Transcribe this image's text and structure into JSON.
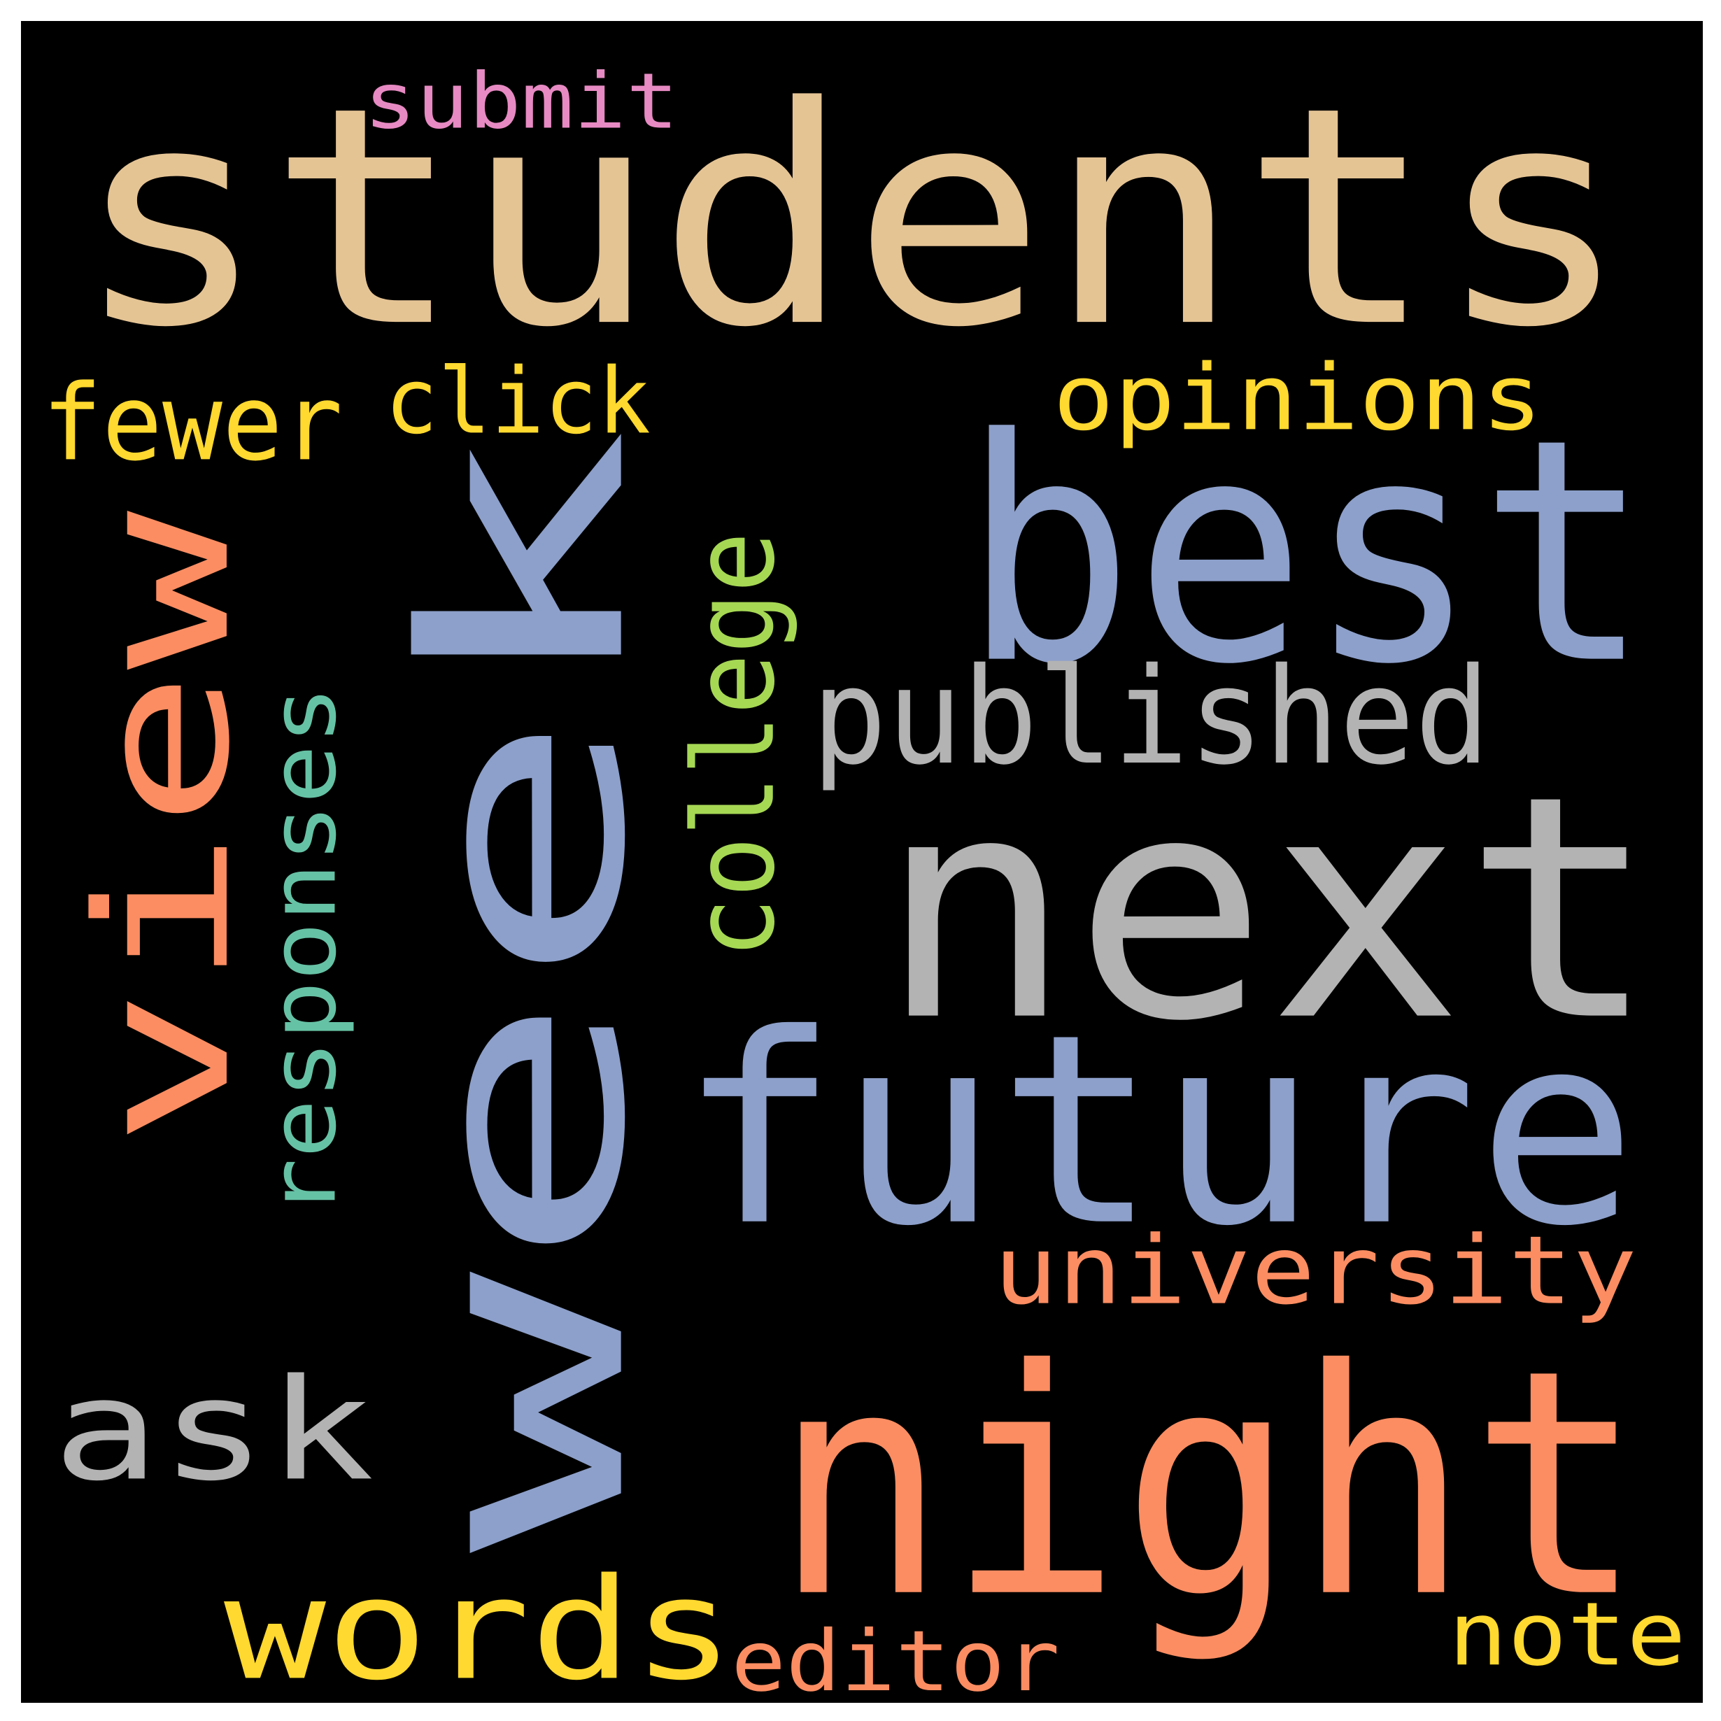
{
  "colors": {
    "background": "#000000",
    "frame": "#ffffff"
  },
  "words": [
    {
      "id": "students",
      "text": "students",
      "color": "#e5c494"
    },
    {
      "id": "week",
      "text": "week",
      "color": "#8da0cb"
    },
    {
      "id": "best",
      "text": "best",
      "color": "#8da0cb"
    },
    {
      "id": "next",
      "text": "next",
      "color": "#b3b3b3"
    },
    {
      "id": "future",
      "text": "future",
      "color": "#8da0cb"
    },
    {
      "id": "night",
      "text": "night",
      "color": "#fc8d62"
    },
    {
      "id": "view",
      "text": "view",
      "color": "#fc8d62"
    },
    {
      "id": "published",
      "text": "published",
      "color": "#b3b3b3"
    },
    {
      "id": "college",
      "text": "college",
      "color": "#a6d854"
    },
    {
      "id": "responses",
      "text": "responses",
      "color": "#66c2a5"
    },
    {
      "id": "opinions",
      "text": "opinions",
      "color": "#ffd92f"
    },
    {
      "id": "click",
      "text": "click",
      "color": "#ffd92f"
    },
    {
      "id": "fewer",
      "text": "fewer",
      "color": "#ffd92f"
    },
    {
      "id": "submit",
      "text": "submit",
      "color": "#e78ac3"
    },
    {
      "id": "university",
      "text": "university",
      "color": "#fc8d62"
    },
    {
      "id": "ask",
      "text": "ask",
      "color": "#b3b3b3"
    },
    {
      "id": "words",
      "text": "words",
      "color": "#ffd92f"
    },
    {
      "id": "editor",
      "text": "editor",
      "color": "#fc8d62"
    },
    {
      "id": "note",
      "text": "note",
      "color": "#ffd92f"
    }
  ]
}
